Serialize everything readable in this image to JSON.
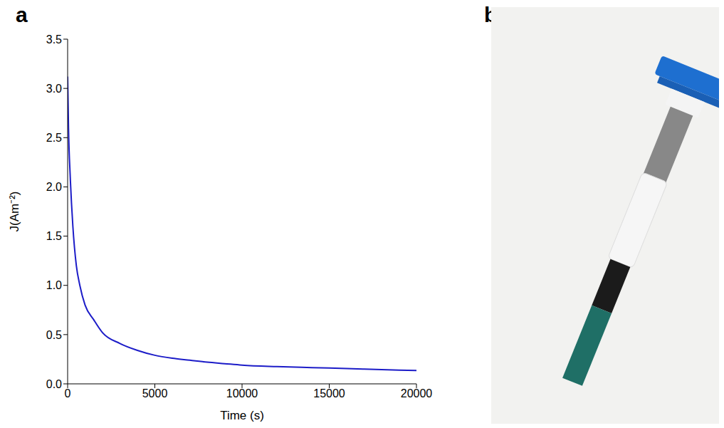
{
  "chart_data": {
    "type": "line",
    "x_label": "Time (s)",
    "y_label": "J(Am⁻²)",
    "grid": false,
    "xlim": [
      0,
      20000
    ],
    "ylim": [
      0,
      3.5
    ],
    "xticks": [
      0,
      5000,
      10000,
      15000,
      20000
    ],
    "yticks": [
      {
        "value": 0,
        "label": "0.0"
      },
      0.5,
      {
        "value": 1,
        "label": "1.0"
      },
      1.5,
      {
        "value": 2,
        "label": "2.0"
      },
      2.5,
      {
        "value": 3,
        "label": "3.0"
      },
      3.5
    ],
    "series": [
      {
        "name": "J",
        "color": "#1c1cc8",
        "marker": "none",
        "line_style": "solid",
        "x": [
          0,
          50,
          150,
          300,
          500,
          700,
          1000,
          1500,
          2000,
          3000,
          4000,
          5000,
          6000,
          7000,
          8000,
          9000,
          10000,
          12000,
          14000,
          16000,
          18000,
          20000
        ],
        "values": [
          3.12,
          2.6,
          2.1,
          1.6,
          1.2,
          1.0,
          0.8,
          0.65,
          0.52,
          0.41,
          0.34,
          0.29,
          0.26,
          0.24,
          0.22,
          0.205,
          0.19,
          0.175,
          0.165,
          0.155,
          0.145,
          0.135
        ]
      }
    ]
  },
  "panels": [
    {
      "label": "a"
    },
    {
      "label": "b"
    }
  ]
}
